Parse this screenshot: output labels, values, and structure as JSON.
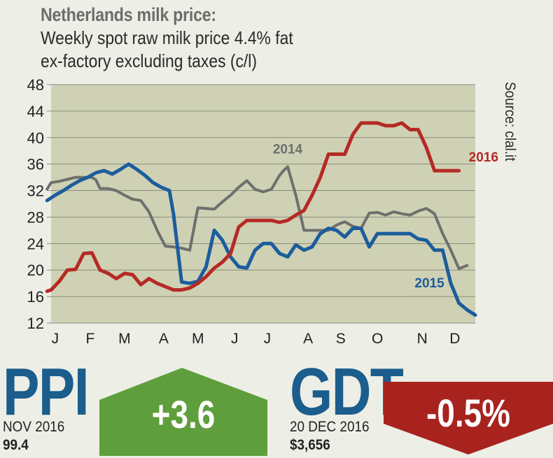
{
  "header": {
    "title": "Netherlands milk price:",
    "subtitle_line1": "Weekly spot raw milk price 4.4% fat",
    "subtitle_line2": "ex-factory excluding taxes (c/l)"
  },
  "source": "Source: clal.it",
  "colors": {
    "plot_bg": "#cfd1b4",
    "s2014": "#6e706e",
    "s2015": "#1b5d9c",
    "s2016": "#b52a25",
    "ppi_badge": "#5e9e3c",
    "gdt_badge": "#a8231e",
    "ppi_text": "#1b5d8c"
  },
  "chart_data": {
    "type": "line",
    "title": "Netherlands milk price:",
    "subtitle": "Weekly spot raw milk price 4.4% fat ex-factory excluding taxes (c/l)",
    "xlabel": "",
    "ylabel": "",
    "ylim": [
      12,
      48
    ],
    "yticks": [
      "12",
      "16",
      "20",
      "24",
      "28",
      "32",
      "36",
      "40",
      "44",
      "48"
    ],
    "xlim": [
      0,
      52
    ],
    "xticks": [
      {
        "label": "J",
        "x": 0.5
      },
      {
        "label": "F",
        "x": 4.8
      },
      {
        "label": "M",
        "x": 9
      },
      {
        "label": "A",
        "x": 13.8
      },
      {
        "label": "M",
        "x": 18
      },
      {
        "label": "J",
        "x": 22.5
      },
      {
        "label": "J",
        "x": 26.5
      },
      {
        "label": "A",
        "x": 31.5
      },
      {
        "label": "S",
        "x": 35.5
      },
      {
        "label": "O",
        "x": 40
      },
      {
        "label": "N",
        "x": 45.5
      },
      {
        "label": "D",
        "x": 49.5
      }
    ],
    "grid": true,
    "series": [
      {
        "name": "2014",
        "x": [
          -0.5,
          0,
          1,
          2,
          3,
          4,
          5,
          5.5,
          6,
          7,
          8,
          9,
          10,
          11,
          12,
          13,
          14,
          15,
          16,
          17,
          17.8,
          18,
          19,
          20,
          21,
          22,
          23,
          24,
          25,
          26,
          27,
          28,
          28.5,
          29,
          30,
          31,
          31.5,
          32,
          33,
          34,
          35,
          36,
          37,
          38,
          39,
          40,
          41,
          42,
          43,
          44,
          45,
          46,
          47,
          48,
          49,
          50,
          51
        ],
        "values": [
          32.2,
          33.2,
          33.4,
          33.7,
          34,
          34,
          34,
          33.6,
          32.3,
          32.3,
          32,
          31.3,
          30.7,
          30.5,
          28.8,
          26,
          23.6,
          23.5,
          23.3,
          23,
          28.2,
          29.4,
          29.3,
          29.2,
          30.3,
          31.3,
          32.5,
          33.5,
          32.2,
          31.8,
          32.2,
          34.3,
          35,
          35.6,
          31.3,
          26,
          26,
          26,
          26,
          26,
          26.8,
          27.3,
          26.6,
          26.3,
          28.6,
          28.7,
          28.3,
          28.8,
          28.5,
          28.3,
          28.9,
          29.3,
          28.5,
          25.5,
          23,
          20.2,
          20.7
        ]
      },
      {
        "name": "2015",
        "x": [
          -0.5,
          0.5,
          1.5,
          2.5,
          3.5,
          4.5,
          5.5,
          6.5,
          7.5,
          8.5,
          9.5,
          10.5,
          11.5,
          12.5,
          13.5,
          14.5,
          15,
          16,
          17,
          18,
          19,
          20,
          21,
          22,
          23,
          24,
          25,
          26,
          27,
          28,
          29,
          30,
          31,
          32,
          33,
          34,
          35,
          36,
          37,
          38,
          39,
          40,
          41,
          42,
          43,
          44,
          45,
          46,
          47,
          48,
          49,
          50,
          51,
          52
        ],
        "values": [
          30.5,
          31.3,
          32,
          32.8,
          33.5,
          34,
          34.7,
          35,
          34.5,
          35.2,
          36,
          35.2,
          34.3,
          33.2,
          32.5,
          32,
          28.5,
          18.2,
          18,
          18.3,
          20.5,
          26,
          24.5,
          22,
          20.5,
          20.3,
          23,
          24,
          24,
          22.5,
          22,
          23.8,
          23,
          23.5,
          25.5,
          26.3,
          26,
          25,
          26.3,
          26.3,
          23.5,
          25.5,
          25.5,
          25.5,
          25.5,
          25.5,
          24.7,
          24.5,
          23,
          23,
          18,
          15,
          14,
          13.2
        ]
      },
      {
        "name": "2016",
        "x": [
          -0.5,
          0,
          1,
          2,
          3,
          4,
          5,
          6,
          7,
          8,
          9,
          10,
          11,
          12,
          13,
          14,
          15,
          16,
          17,
          18,
          19,
          20,
          21,
          22,
          23,
          24,
          25,
          26,
          27,
          28,
          29,
          30,
          31,
          32,
          33,
          34,
          35,
          36,
          37,
          38,
          39,
          40,
          41,
          42,
          43,
          44,
          45,
          46,
          47,
          48,
          49,
          50
        ],
        "values": [
          16.8,
          17,
          18.3,
          20,
          20.1,
          22.5,
          22.6,
          20,
          19.5,
          18.7,
          19.5,
          19.3,
          17.8,
          18.7,
          18,
          17.5,
          17,
          17,
          17.3,
          18,
          19,
          20.3,
          21.2,
          22.5,
          26.5,
          27.5,
          27.5,
          27.5,
          27.5,
          27.2,
          27.5,
          28.3,
          29,
          31.3,
          34,
          37.5,
          37.5,
          37.5,
          40.5,
          42.2,
          42.2,
          42.2,
          41.8,
          41.8,
          42.2,
          41.2,
          41.2,
          38.5,
          35,
          35,
          35,
          35
        ]
      }
    ],
    "annotations": [
      {
        "text": "2014",
        "series": "2014"
      },
      {
        "text": "2015",
        "series": "2015"
      },
      {
        "text": "2016",
        "series": "2016"
      }
    ]
  },
  "ppi": {
    "label": "PPI",
    "date": "NOV 2016",
    "value": "99.4",
    "change": "+3.6"
  },
  "gdt": {
    "label": "GDT",
    "date": "20 DEC 2016",
    "value": "$3,656",
    "change": "-0.5%"
  }
}
